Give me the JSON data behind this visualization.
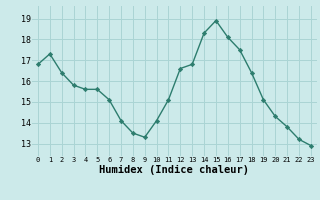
{
  "x": [
    0,
    1,
    2,
    3,
    4,
    5,
    6,
    7,
    8,
    9,
    10,
    11,
    12,
    13,
    14,
    15,
    16,
    17,
    18,
    19,
    20,
    21,
    22,
    23
  ],
  "y": [
    16.8,
    17.3,
    16.4,
    15.8,
    15.6,
    15.6,
    15.1,
    14.1,
    13.5,
    13.3,
    14.1,
    15.1,
    16.6,
    16.8,
    18.3,
    18.9,
    18.1,
    17.5,
    16.4,
    15.1,
    14.3,
    13.8,
    13.2,
    12.9
  ],
  "line_color": "#2d7d6e",
  "marker": "D",
  "markersize": 2.2,
  "linewidth": 1.0,
  "bg_color": "#cceaea",
  "grid_color": "#aad4d4",
  "xlabel": "Humidex (Indice chaleur)",
  "xlabel_fontsize": 7.5,
  "xtick_labels": [
    "0",
    "1",
    "2",
    "3",
    "4",
    "5",
    "6",
    "7",
    "8",
    "9",
    "10",
    "11",
    "12",
    "13",
    "14",
    "15",
    "16",
    "17",
    "18",
    "19",
    "20",
    "21",
    "22",
    "23"
  ],
  "ytick_values": [
    13,
    14,
    15,
    16,
    17,
    18,
    19
  ],
  "ylim": [
    12.4,
    19.6
  ],
  "xlim": [
    -0.5,
    23.5
  ]
}
